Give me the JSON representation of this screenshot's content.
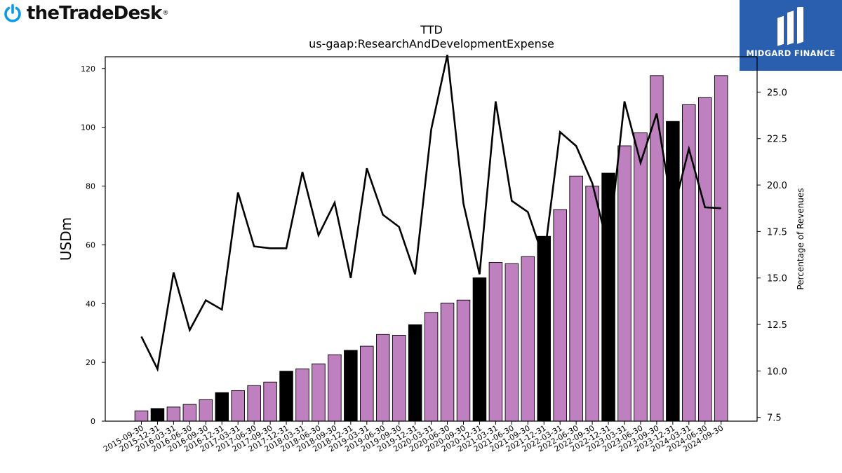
{
  "header": {
    "brand_left": "theTradeDesk",
    "brand_left_reg": "®",
    "brand_right": "MIDGARD FINANCE"
  },
  "chart_data": {
    "type": "bar",
    "title": "TTD",
    "subtitle": "us-gaap:ResearchAndDevelopmentExpense",
    "ylabel": "USDm",
    "y2label": "Percentage of Revenues",
    "ylim": [
      0,
      124
    ],
    "y2lim": [
      7.3,
      26.9
    ],
    "yticks": [
      "0",
      "20",
      "40",
      "60",
      "80",
      "100",
      "120"
    ],
    "y2ticks": [
      "7.5",
      "10.0",
      "12.5",
      "15.0",
      "17.5",
      "20.0",
      "22.5",
      "25.0"
    ],
    "grid": false,
    "colors": {
      "quarter_bar": "#bf80bf",
      "year_end_bar": "#000000",
      "line": "#000000"
    },
    "categories": [
      "2015-09-30",
      "2015-12-31",
      "2016-03-31",
      "2016-06-30",
      "2016-09-30",
      "2016-12-31",
      "2017-03-31",
      "2017-06-30",
      "2017-09-30",
      "2017-12-31",
      "2018-03-31",
      "2018-06-30",
      "2018-09-30",
      "2018-12-31",
      "2019-03-31",
      "2019-06-30",
      "2019-09-30",
      "2019-12-31",
      "2020-03-31",
      "2020-06-30",
      "2020-09-30",
      "2020-12-31",
      "2021-03-31",
      "2021-06-30",
      "2021-09-30",
      "2021-12-31",
      "2022-03-31",
      "2022-06-30",
      "2022-09-30",
      "2022-12-31",
      "2023-03-31",
      "2023-06-30",
      "2023-09-30",
      "2023-12-31",
      "2024-03-31",
      "2024-06-30",
      "2024-09-30"
    ],
    "series": [
      {
        "type": "bar",
        "values": [
          3.5,
          4.3,
          4.8,
          5.7,
          7.3,
          9.7,
          10.4,
          12.1,
          13.3,
          17.0,
          17.8,
          19.5,
          22.6,
          24.1,
          25.5,
          29.5,
          29.2,
          32.8,
          37.0,
          40.2,
          41.2,
          48.8,
          54.0,
          53.6,
          56.0,
          62.9,
          72.0,
          83.4,
          80.0,
          84.4,
          93.7,
          98.1,
          117.6,
          102.0,
          107.7,
          110.1,
          117.6
        ],
        "highlight": [
          false,
          true,
          false,
          false,
          false,
          true,
          false,
          false,
          false,
          true,
          false,
          false,
          false,
          true,
          false,
          false,
          false,
          true,
          false,
          false,
          false,
          true,
          false,
          false,
          false,
          true,
          false,
          false,
          false,
          true,
          false,
          false,
          false,
          true,
          false,
          false,
          false
        ]
      },
      {
        "type": "line",
        "axis": "right",
        "values": [
          11.85,
          10.1,
          15.3,
          12.2,
          13.8,
          13.3,
          19.6,
          16.7,
          16.6,
          16.6,
          20.7,
          17.3,
          19.05,
          15.0,
          20.9,
          18.4,
          17.75,
          15.2,
          23.0,
          27.0,
          19.0,
          15.2,
          24.5,
          19.15,
          18.55,
          16.0,
          22.85,
          22.1,
          20.1,
          16.6,
          24.5,
          21.2,
          23.85,
          18.5,
          21.95,
          18.8,
          18.75
        ]
      }
    ]
  }
}
